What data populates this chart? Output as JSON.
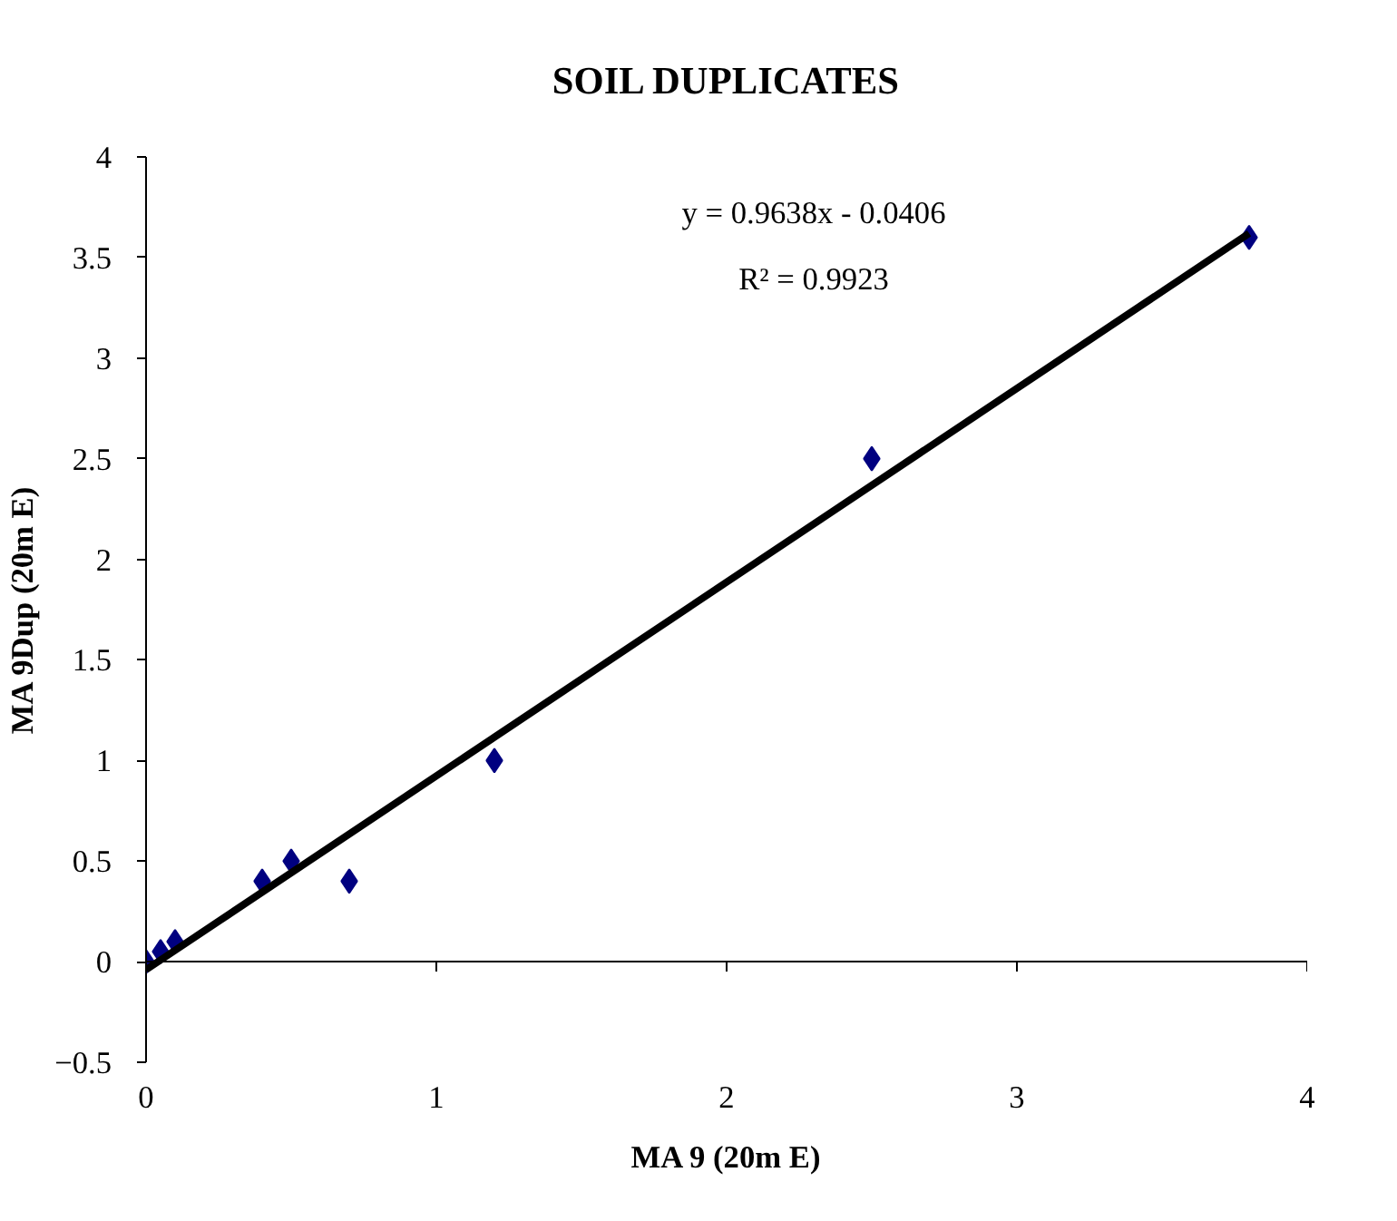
{
  "chart_data": {
    "type": "scatter",
    "title": "SOIL DUPLICATES",
    "xlabel": "MA 9 (20m E)",
    "ylabel": "MA 9Dup (20m E)",
    "x": [
      0,
      0.05,
      0.1,
      0.4,
      0.5,
      0.7,
      1.2,
      2.5,
      3.8
    ],
    "series": [
      {
        "color": "#000080",
        "marker": "diamond",
        "values": [
          0,
          0.05,
          0.1,
          0.4,
          0.5,
          0.4,
          1.0,
          2.5,
          3.6
        ]
      },
      {
        "type": "line",
        "color": "#000000",
        "marker": "none",
        "x": [
          0,
          3.8
        ],
        "values": [
          -0.04,
          3.62
        ]
      }
    ],
    "annotations": [
      "y = 0.9638x - 0.0406",
      "R² = 0.9923"
    ],
    "xlim": [
      0,
      4
    ],
    "xticks": [
      0,
      1,
      2,
      3,
      4
    ],
    "ylim": [
      -0.5,
      4
    ],
    "yticks": [
      -0.5,
      0,
      0.5,
      1,
      1.5,
      2,
      2.5,
      3,
      3.5,
      4
    ],
    "ref_lines": [
      {
        "axis": "y",
        "value": 0,
        "color": "#000000"
      }
    ],
    "grid": false,
    "line_style": "solid"
  }
}
